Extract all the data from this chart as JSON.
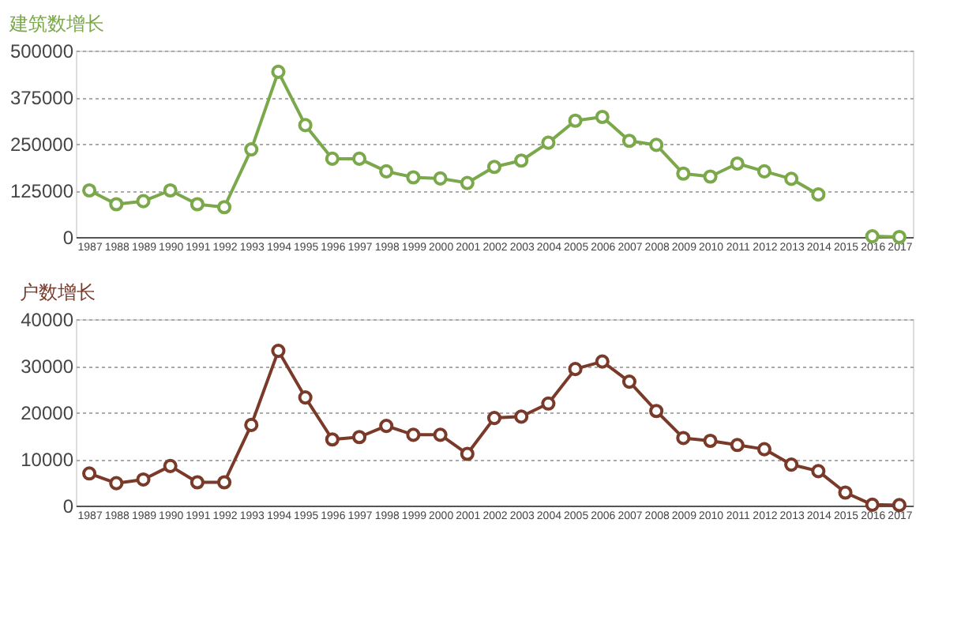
{
  "chart_data": [
    {
      "type": "line",
      "title": "建筑数增长",
      "categories": [
        "1987",
        "1988",
        "1989",
        "1990",
        "1991",
        "1992",
        "1993",
        "1994",
        "1995",
        "1996",
        "1997",
        "1998",
        "1999",
        "2000",
        "2001",
        "2002",
        "2003",
        "2004",
        "2005",
        "2006",
        "2007",
        "2008",
        "2009",
        "2010",
        "2011",
        "2012",
        "2013",
        "2014",
        "2015",
        "2016",
        "2017"
      ],
      "series": [
        {
          "color": "#7aa84a",
          "values": [
            125000,
            88000,
            96000,
            125000,
            88000,
            80000,
            235000,
            443000,
            300000,
            210000,
            210000,
            176000,
            160000,
            157000,
            145000,
            188000,
            205000,
            253000,
            312000,
            322000,
            258000,
            247000,
            170000,
            162000,
            197000,
            176000,
            156000,
            114000,
            null,
            2000,
            0
          ]
        }
      ],
      "ylim": [
        0,
        500000
      ],
      "yticks": [
        0,
        125000,
        250000,
        375000,
        500000
      ],
      "grid": "y",
      "marker": "circle",
      "line_style": "solid"
    },
    {
      "type": "line",
      "title": "户数增长",
      "categories": [
        "1987",
        "1988",
        "1989",
        "1990",
        "1991",
        "1992",
        "1993",
        "1994",
        "1995",
        "1996",
        "1997",
        "1998",
        "1999",
        "2000",
        "2001",
        "2002",
        "2003",
        "2004",
        "2005",
        "2006",
        "2007",
        "2008",
        "2009",
        "2010",
        "2011",
        "2012",
        "2013",
        "2014",
        "2015",
        "2016",
        "2017"
      ],
      "series": [
        {
          "color": "#7a3a2a",
          "values": [
            6900,
            4800,
            5600,
            8500,
            5000,
            5000,
            17300,
            33200,
            23200,
            14200,
            14700,
            17100,
            15200,
            15200,
            11100,
            18800,
            19100,
            21900,
            29300,
            30900,
            26600,
            20300,
            14500,
            13900,
            13000,
            12100,
            8800,
            7400,
            2800,
            200,
            100
          ]
        }
      ],
      "ylim": [
        0,
        40000
      ],
      "yticks": [
        0,
        10000,
        20000,
        30000,
        40000
      ],
      "grid": "y",
      "marker": "circle",
      "line_style": "solid"
    }
  ]
}
